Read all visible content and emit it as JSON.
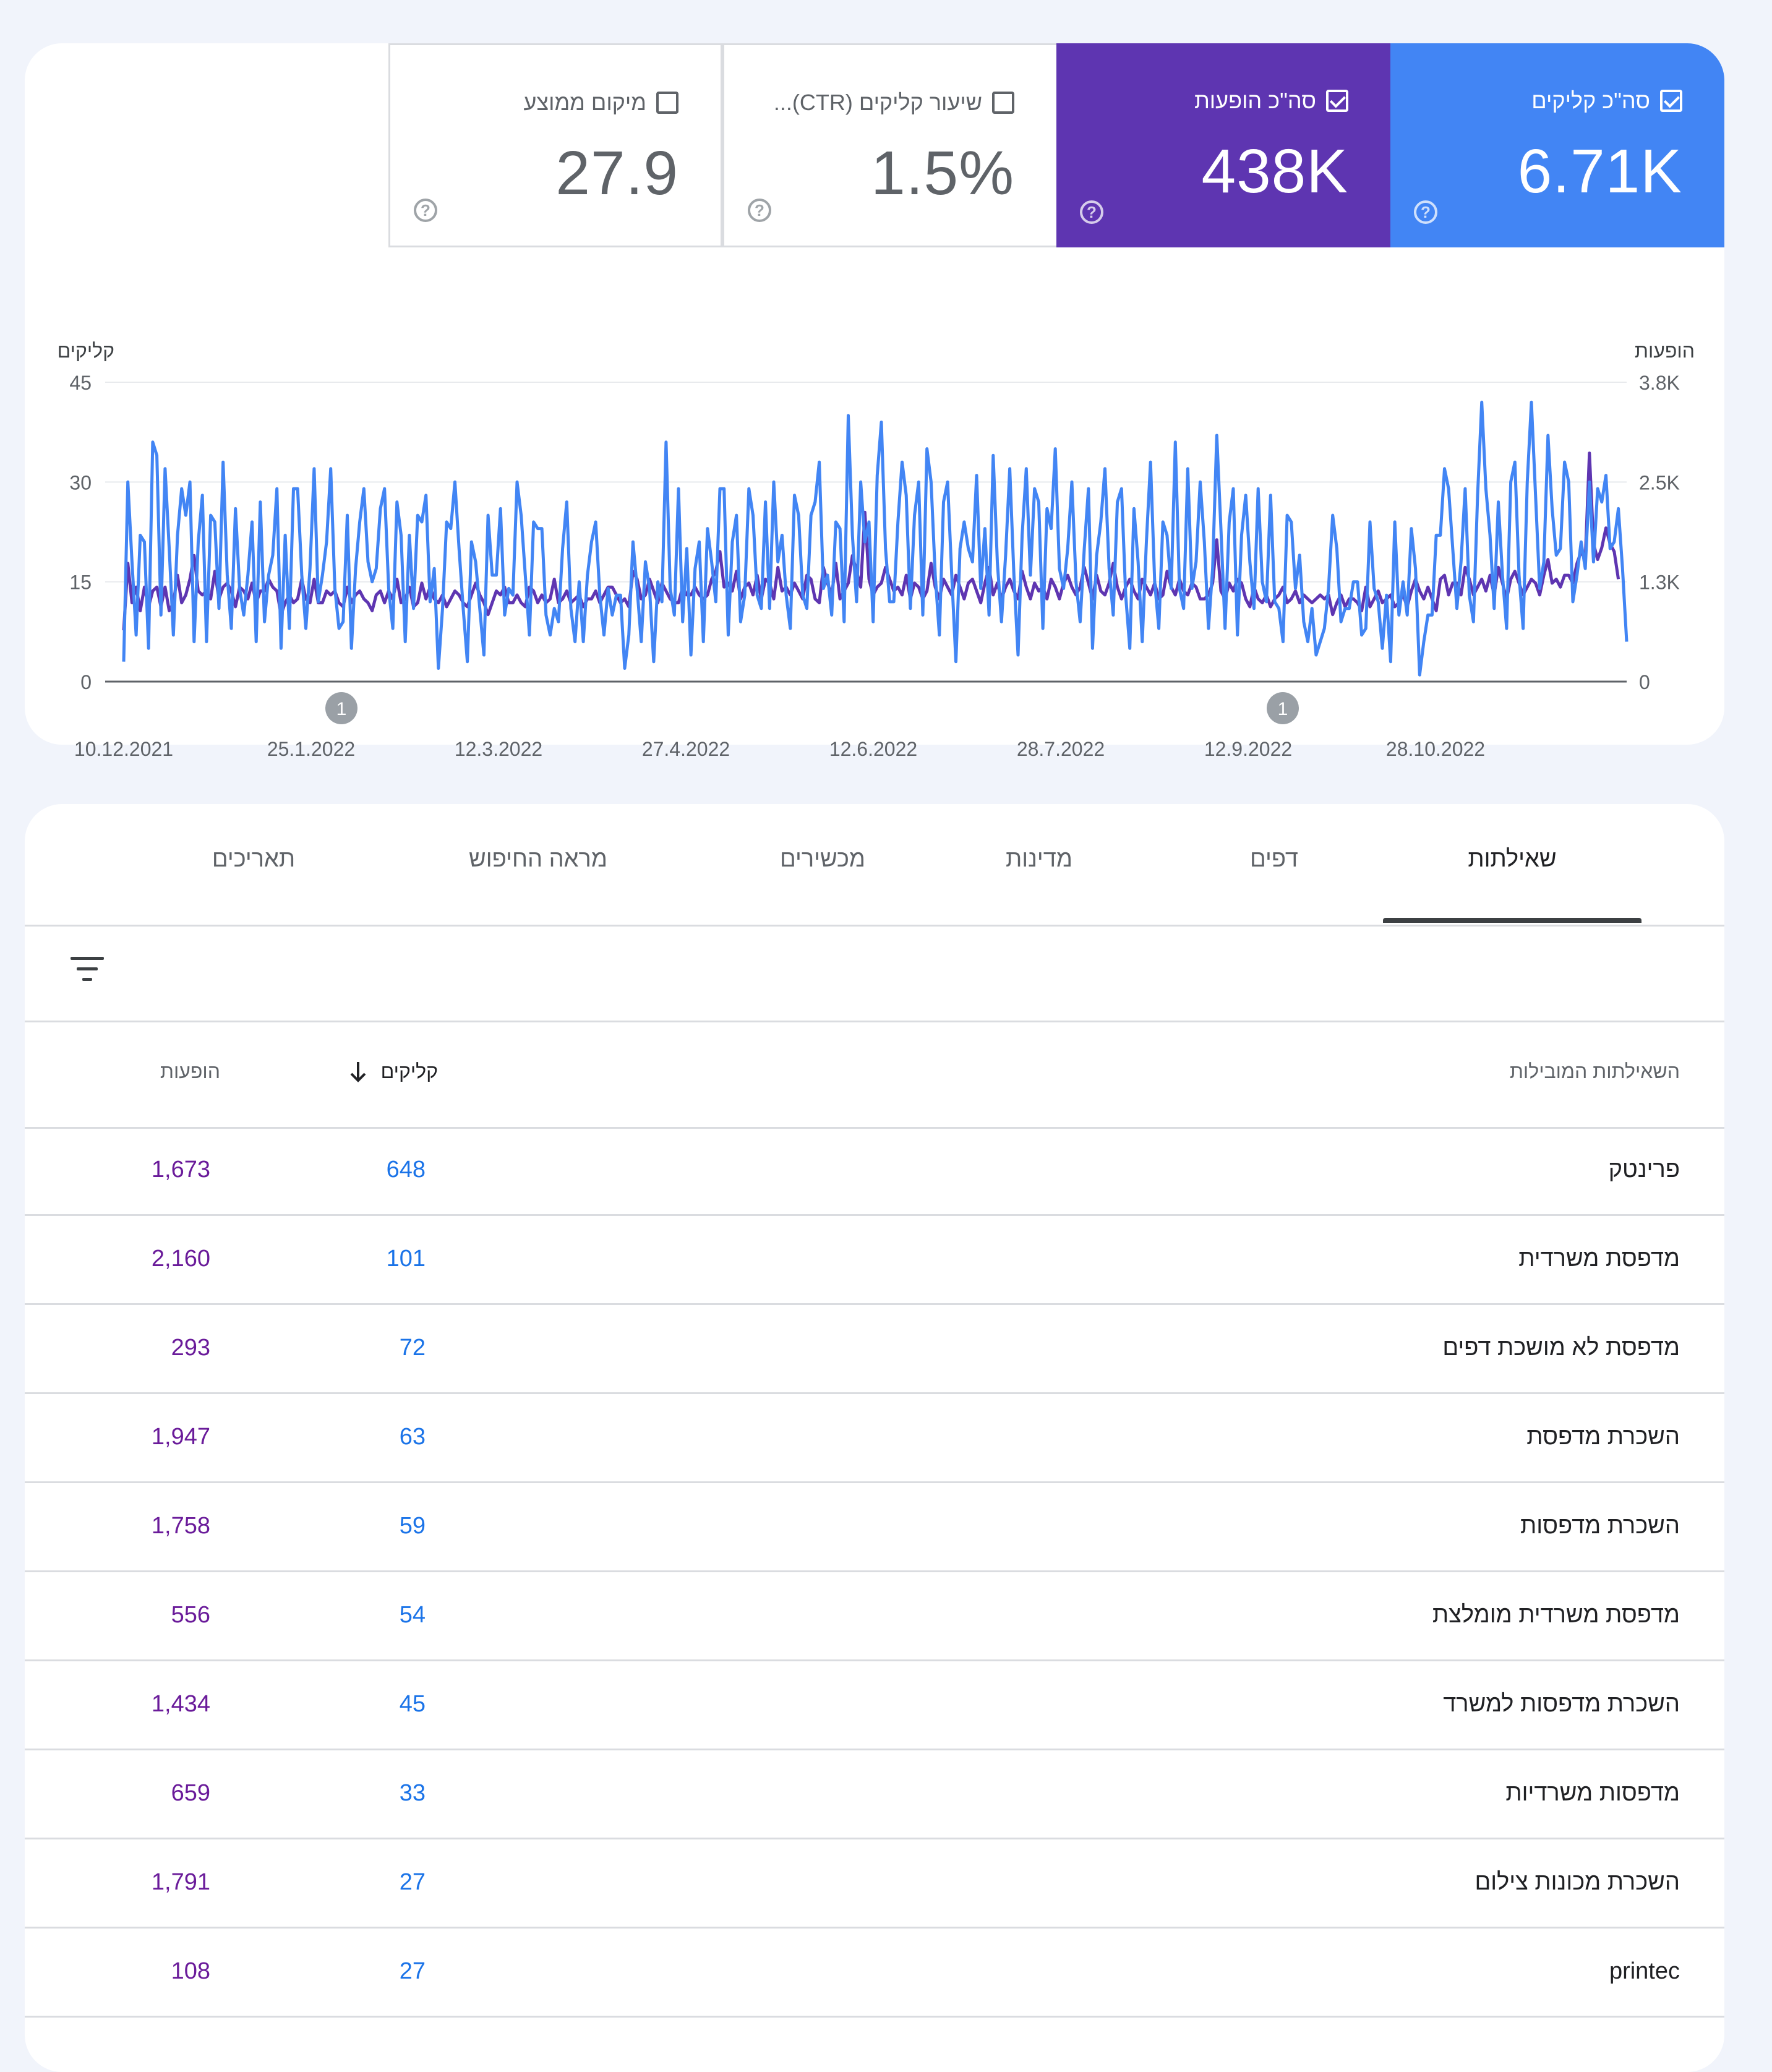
{
  "metrics": {
    "clicks": {
      "label": "סה\"כ קליקים",
      "value": "6.71K",
      "checked": true,
      "color": "#4285f4"
    },
    "impressions": {
      "label": "סה\"כ הופעות",
      "value": "438K",
      "checked": true,
      "color": "#5e35b1"
    },
    "ctr": {
      "label": "שיעור קליקים (CTR)...",
      "value": "1.5%",
      "checked": false
    },
    "position": {
      "label": "מיקום ממוצע",
      "value": "27.9",
      "checked": false
    }
  },
  "chart_data": {
    "type": "line",
    "left_axis_label": "קליקים",
    "right_axis_label": "הופעות",
    "left_ticks": [
      "45",
      "30",
      "15",
      "0"
    ],
    "right_ticks": [
      "3.8K",
      "2.5K",
      "1.3K",
      "0"
    ],
    "ylim_clicks": [
      0,
      45
    ],
    "ylim_impressions": [
      0,
      3800
    ],
    "x_tick_labels": [
      "10.12.2021",
      "25.1.2022",
      "12.3.2022",
      "27.4.2022",
      "12.6.2022",
      "28.7.2022",
      "12.9.2022",
      "28.10.2022"
    ],
    "annotations": [
      {
        "label": "1",
        "date": "1.2.2022"
      },
      {
        "label": "1",
        "date": "16.9.2022"
      }
    ],
    "series": [
      {
        "name": "קליקים",
        "color": "#4285f4",
        "values": [
          3,
          30,
          18,
          7,
          22,
          21,
          5,
          36,
          34,
          10,
          32,
          20,
          7,
          22,
          29,
          25,
          30,
          6,
          21,
          28,
          6,
          25,
          24,
          11,
          33,
          16,
          8,
          26,
          14,
          10,
          16,
          24,
          6,
          27,
          9,
          16,
          19,
          29,
          5,
          22,
          8,
          29,
          29,
          16,
          8,
          17,
          32,
          12,
          16,
          21,
          32,
          14,
          8,
          9,
          25,
          5,
          17,
          24,
          29,
          18,
          15,
          17,
          26,
          29,
          14,
          8,
          27,
          22,
          6,
          22,
          11,
          25,
          24,
          28,
          12,
          17,
          2,
          11,
          24,
          23,
          30,
          20,
          11,
          3,
          21,
          18,
          11,
          4,
          25,
          16,
          16,
          26,
          10,
          14,
          13,
          30,
          25,
          16,
          7,
          24,
          23,
          23,
          10,
          7,
          11,
          9,
          20,
          27,
          11,
          6,
          15,
          6,
          16,
          21,
          24,
          13,
          7,
          14,
          10,
          13,
          13,
          2,
          7,
          21,
          14,
          6,
          18,
          14,
          3,
          15,
          12,
          36,
          14,
          10,
          29,
          9,
          20,
          4,
          17,
          21,
          6,
          23,
          18,
          12,
          29,
          29,
          7,
          21,
          25,
          9,
          13,
          29,
          25,
          13,
          11,
          27,
          11,
          30,
          18,
          22,
          13,
          8,
          28,
          25,
          13,
          11,
          25,
          27,
          33,
          14,
          16,
          10,
          24,
          23,
          9,
          40,
          22,
          12,
          30,
          21,
          24,
          9,
          31,
          39,
          20,
          12,
          12,
          24,
          33,
          28,
          11,
          25,
          30,
          10,
          35,
          30,
          16,
          7,
          27,
          30,
          16,
          3,
          20,
          24,
          20,
          18,
          31,
          14,
          23,
          10,
          34,
          18,
          9,
          19,
          32,
          16,
          4,
          22,
          32,
          16,
          29,
          27,
          8,
          26,
          23,
          35,
          17,
          14,
          20,
          30,
          15,
          9,
          20,
          29,
          5,
          19,
          24,
          32,
          17,
          10,
          27,
          29,
          13,
          5,
          26,
          18,
          6,
          21,
          33,
          15,
          8,
          24,
          22,
          14,
          36,
          14,
          11,
          32,
          14,
          18,
          30,
          21,
          8,
          17,
          37,
          23,
          8,
          24,
          29,
          7,
          22,
          28,
          18,
          11,
          29,
          15,
          12,
          28,
          12,
          11,
          6,
          25,
          24,
          14,
          19,
          9,
          6,
          11,
          4,
          6,
          8,
          14,
          25,
          20,
          9,
          11,
          11,
          15,
          15,
          7,
          8,
          24,
          14,
          12,
          5,
          13,
          3,
          24,
          10,
          15,
          10,
          23,
          17,
          1,
          6,
          10,
          10,
          22,
          22,
          32,
          29,
          20,
          11,
          18,
          29,
          13,
          9,
          28,
          42,
          29,
          22,
          11,
          27,
          16,
          8,
          30,
          33,
          16,
          8,
          30,
          42,
          28,
          14,
          18,
          37,
          26,
          19,
          20,
          33,
          30,
          12,
          16,
          21,
          17,
          30,
          18,
          29,
          27,
          31,
          20,
          21,
          26,
          17,
          6
        ]
      },
      {
        "name": "הופעות",
        "color": "#5e35b1",
        "values": [
          650,
          1500,
          1000,
          1200,
          900,
          1200,
          950,
          1150,
          1200,
          950,
          1200,
          900,
          1000,
          1350,
          1000,
          1100,
          1300,
          1600,
          1150,
          1100,
          1150,
          1050,
          1400,
          1050,
          1200,
          1250,
          1150,
          950,
          1200,
          1150,
          1050,
          1250,
          1000,
          1150,
          1150,
          1300,
          1200,
          1150,
          850,
          1000,
          1100,
          1000,
          1050,
          1300,
          1050,
          1000,
          1300,
          1000,
          1000,
          1150,
          1100,
          1150,
          1000,
          950,
          1200,
          1000,
          1100,
          1150,
          1050,
          1000,
          900,
          1100,
          1150,
          1000,
          1150,
          1050,
          1300,
          1000,
          1050,
          1200,
          950,
          1000,
          1250,
          1050,
          1200,
          1050,
          1000,
          1100,
          950,
          1050,
          1150,
          1100,
          1000,
          950,
          1100,
          1250,
          1100,
          1000,
          850,
          1000,
          1150,
          1100,
          1200,
          1000,
          1000,
          1100,
          1000,
          950,
          1200,
          1150,
          1000,
          1100,
          1000,
          1050,
          1300,
          1000,
          1050,
          1150,
          1000,
          1050,
          1100,
          950,
          1050,
          1050,
          1150,
          1000,
          1100,
          1200,
          1200,
          1100,
          1000,
          1050,
          950,
          1400,
          1300,
          1050,
          1100,
          1300,
          1150,
          1000,
          1250,
          1150,
          1050,
          1000,
          1000,
          1200,
          1100,
          1100,
          1200,
          1100,
          1050,
          1100,
          1300,
          1400,
          1650,
          1200,
          1250,
          1150,
          1400,
          1050,
          1200,
          1250,
          1100,
          1350,
          1050,
          1300,
          1250,
          1050,
          1450,
          1150,
          1200,
          1100,
          1250,
          1150,
          1050,
          1350,
          1300,
          1050,
          1000,
          1450,
          1250,
          1100,
          1500,
          1050,
          1150,
          1250,
          1600,
          1400,
          1200,
          2150,
          1300,
          1100,
          1200,
          1250,
          1450,
          1300,
          1150,
          1200,
          1100,
          1350,
          1050,
          1250,
          1200,
          1050,
          1150,
          1500,
          1200,
          1050,
          1300,
          1200,
          1100,
          1350,
          1200,
          1050,
          1250,
          1300,
          1150,
          1000,
          1250,
          1450,
          1100,
          1250,
          1050,
          1200,
          1300,
          1150,
          1050,
          1400,
          1200,
          1050,
          1250,
          1150,
          1200,
          1050,
          1300,
          1200,
          1050,
          1250,
          1350,
          1200,
          1100,
          1200,
          1450,
          1250,
          1050,
          1350,
          1150,
          1100,
          1250,
          1500,
          1200,
          1050,
          1200,
          1300,
          1150,
          1050,
          1300,
          1200,
          1100,
          1250,
          1050,
          1100,
          1400,
          1200,
          1100,
          1300,
          1150,
          1100,
          1250,
          1200,
          1050,
          1050,
          1100,
          1250,
          1800,
          1150,
          1050,
          1250,
          1150,
          1300,
          1250,
          1050,
          950,
          1200,
          1050,
          1000,
          1100,
          950,
          1050,
          1100,
          1200,
          1000,
          1050,
          1150,
          1000,
          1100,
          1050,
          1000,
          1050,
          1100,
          1050,
          1100,
          850,
          1000,
          1100,
          950,
          1050,
          1050,
          1000,
          900,
          1200,
          950,
          1050,
          1150,
          1000,
          1050,
          1100,
          950,
          1000,
          1100,
          950,
          1150,
          1300,
          1150,
          1050,
          1200,
          1050,
          900,
          1300,
          1350,
          1100,
          1250,
          1250,
          1100,
          1450,
          1300,
          1100,
          1200,
          1300,
          1150,
          1350,
          1100,
          1450,
          1250,
          1050,
          1300,
          1400,
          1250,
          1100,
          1200,
          1300,
          1250,
          1100,
          1350,
          1550,
          1250,
          1300,
          1200,
          1350,
          1350,
          1250,
          1500,
          1650,
          1550,
          2900,
          1750,
          1550,
          1700,
          1950,
          1750,
          1650,
          1300
        ]
      }
    ]
  },
  "tabs": [
    "שאילתות",
    "דפים",
    "מדינות",
    "מכשירים",
    "מראה החיפוש",
    "תאריכים"
  ],
  "table": {
    "col_query": "השאילתות המובילות",
    "col_clicks": "קליקים",
    "col_impressions": "הופעות",
    "rows": [
      {
        "query": "פרינטק",
        "clicks": "648",
        "impressions": "1,673"
      },
      {
        "query": "מדפסת משרדית",
        "clicks": "101",
        "impressions": "2,160"
      },
      {
        "query": "מדפסת לא מושכת דפים",
        "clicks": "72",
        "impressions": "293"
      },
      {
        "query": "השכרת מדפסת",
        "clicks": "63",
        "impressions": "1,947"
      },
      {
        "query": "השכרת מדפסות",
        "clicks": "59",
        "impressions": "1,758"
      },
      {
        "query": "מדפסת משרדית מומלצת",
        "clicks": "54",
        "impressions": "556"
      },
      {
        "query": "השכרת מדפסות למשרד",
        "clicks": "45",
        "impressions": "1,434"
      },
      {
        "query": "מדפסות משרדיות",
        "clicks": "33",
        "impressions": "659"
      },
      {
        "query": "השכרת מכונות צילום",
        "clicks": "27",
        "impressions": "1,791"
      },
      {
        "query": "printec",
        "clicks": "27",
        "impressions": "108"
      }
    ]
  }
}
